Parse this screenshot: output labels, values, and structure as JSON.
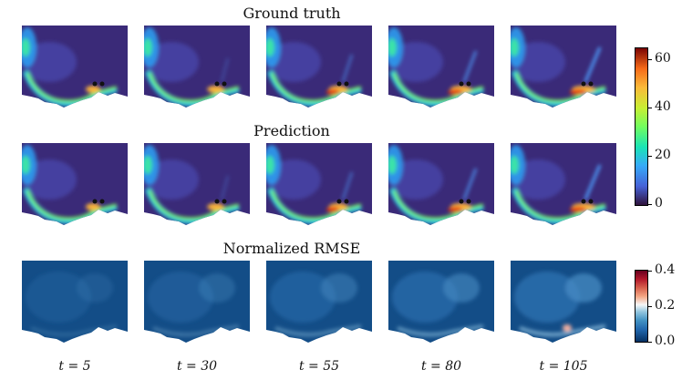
{
  "chart_data": {
    "type": "heatmap",
    "rows": [
      {
        "title": "Ground truth",
        "colormap": "jet"
      },
      {
        "title": "Prediction",
        "colormap": "jet"
      },
      {
        "title": "Normalized RMSE",
        "colormap": "RdBu_r"
      }
    ],
    "columns": [
      {
        "label": "t = 5",
        "t": 5
      },
      {
        "label": "t = 30",
        "t": 30
      },
      {
        "label": "t = 55",
        "t": 55
      },
      {
        "label": "t = 80",
        "t": 80
      },
      {
        "label": "t = 105",
        "t": 105
      }
    ],
    "colorbars": [
      {
        "rows": [
          "Ground truth",
          "Prediction"
        ],
        "range": [
          0,
          65
        ],
        "ticks": [
          "0",
          "20",
          "40",
          "60"
        ],
        "tick_values": [
          0,
          20,
          40,
          60
        ]
      },
      {
        "rows": [
          "Normalized RMSE"
        ],
        "range": [
          0,
          0.4
        ],
        "ticks": [
          "0.0",
          "0.2",
          "0.4"
        ],
        "tick_values": [
          0,
          0.2,
          0.4
        ]
      }
    ]
  }
}
